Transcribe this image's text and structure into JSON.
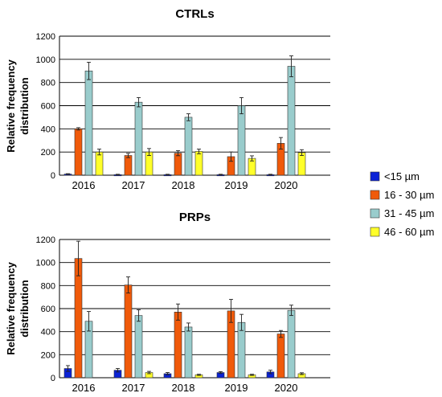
{
  "chart_data": [
    {
      "type": "bar",
      "title": "CTRLs",
      "ylabel": "Relative frequency distribution",
      "ylabel_lines": [
        "Relative frequency",
        "distribution"
      ],
      "xlabel": "",
      "ylim": [
        0,
        1200
      ],
      "yticks": [
        0,
        200,
        400,
        600,
        800,
        1000,
        1200
      ],
      "grid": true,
      "categories": [
        "2016",
        "2017",
        "2018",
        "2019",
        "2020"
      ],
      "series": [
        {
          "name": "<15 µm",
          "color": "#0a22d6",
          "values": [
            10,
            5,
            5,
            5,
            5
          ],
          "errors": [
            3,
            3,
            3,
            3,
            3
          ]
        },
        {
          "name": "16 - 30 µm",
          "color": "#f05a0a",
          "values": [
            400,
            170,
            190,
            160,
            275
          ],
          "errors": [
            10,
            18,
            22,
            40,
            50
          ]
        },
        {
          "name": "31 - 45 µm",
          "color": "#99cccc",
          "values": [
            900,
            630,
            500,
            600,
            940
          ],
          "errors": [
            75,
            40,
            30,
            70,
            90
          ]
        },
        {
          "name": "46 - 60 µm",
          "color": "#ffff2a",
          "values": [
            200,
            200,
            205,
            145,
            195
          ],
          "errors": [
            25,
            30,
            20,
            22,
            25
          ]
        }
      ]
    },
    {
      "type": "bar",
      "title": "PRPs",
      "ylabel": "Relative frequency distribution",
      "ylabel_lines": [
        "Relative frequency",
        "distribution"
      ],
      "xlabel": "",
      "ylim": [
        0,
        1200
      ],
      "yticks": [
        0,
        200,
        400,
        600,
        800,
        1000,
        1200
      ],
      "grid": true,
      "categories": [
        "2016",
        "2017",
        "2018",
        "2019",
        "2020"
      ],
      "series": [
        {
          "name": "<15 µm",
          "color": "#0a22d6",
          "values": [
            80,
            65,
            35,
            45,
            50
          ],
          "errors": [
            25,
            15,
            10,
            8,
            15
          ]
        },
        {
          "name": "16 - 30 µm",
          "color": "#f05a0a",
          "values": [
            1035,
            805,
            570,
            580,
            380
          ],
          "errors": [
            150,
            70,
            70,
            100,
            30
          ]
        },
        {
          "name": "31 - 45 µm",
          "color": "#99cccc",
          "values": [
            490,
            540,
            440,
            480,
            585
          ],
          "errors": [
            85,
            50,
            35,
            70,
            45
          ]
        },
        {
          "name": "46 - 60 µm",
          "color": "#ffff2a",
          "values": [
            0,
            45,
            25,
            25,
            35
          ],
          "errors": [
            0,
            10,
            5,
            5,
            8
          ]
        }
      ]
    }
  ],
  "legend": {
    "placement": "right",
    "items": [
      {
        "label": "<15 µm",
        "color": "#0a22d6"
      },
      {
        "label": "16 - 30 µm",
        "color": "#f05a0a"
      },
      {
        "label": "31 - 45 µm",
        "color": "#99cccc"
      },
      {
        "label": "46 - 60 µm",
        "color": "#ffff2a"
      }
    ]
  }
}
